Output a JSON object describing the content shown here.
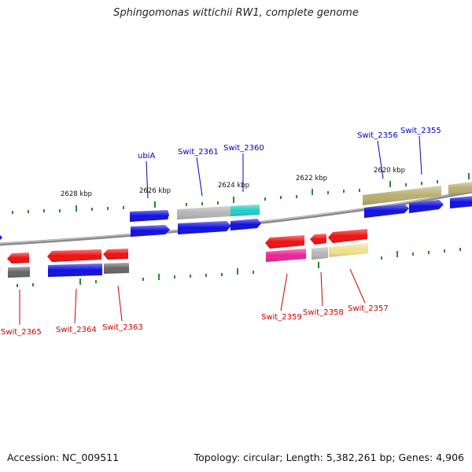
{
  "title": "Sphingomonas wittichii RW1, complete genome",
  "footer": {
    "accession": "Accession: NC_009511",
    "summary": "Topology: circular; Length: 5,382,261 bp; Genes: 4,906"
  },
  "colors": {
    "backbone": "#8a8a8a",
    "tick": "#2a8a2a",
    "label_forward": "#0000bb",
    "label_reverse": "#cc0000",
    "blue": "#1010e0",
    "red": "#ee1111",
    "gray": "#b5b5b5",
    "darkgray": "#666666",
    "cyan": "#22cccc",
    "olive": "#b8ae70",
    "magenta": "#ee2299",
    "yellow": "#eee090"
  },
  "kbp_labels": [
    "2628 kbp",
    "2626 kbp",
    "2624 kbp",
    "2622 kbp",
    "2620 kbp"
  ],
  "gene_labels_forward": [
    "ubiA",
    "Swit_2361",
    "Swit_2360",
    "Swit_2356",
    "Swit_2355"
  ],
  "gene_labels_reverse": [
    "Swit_2365",
    "Swit_2364",
    "Swit_2363",
    "Swit_2359",
    "Swit_2358",
    "Swit_2357"
  ]
}
